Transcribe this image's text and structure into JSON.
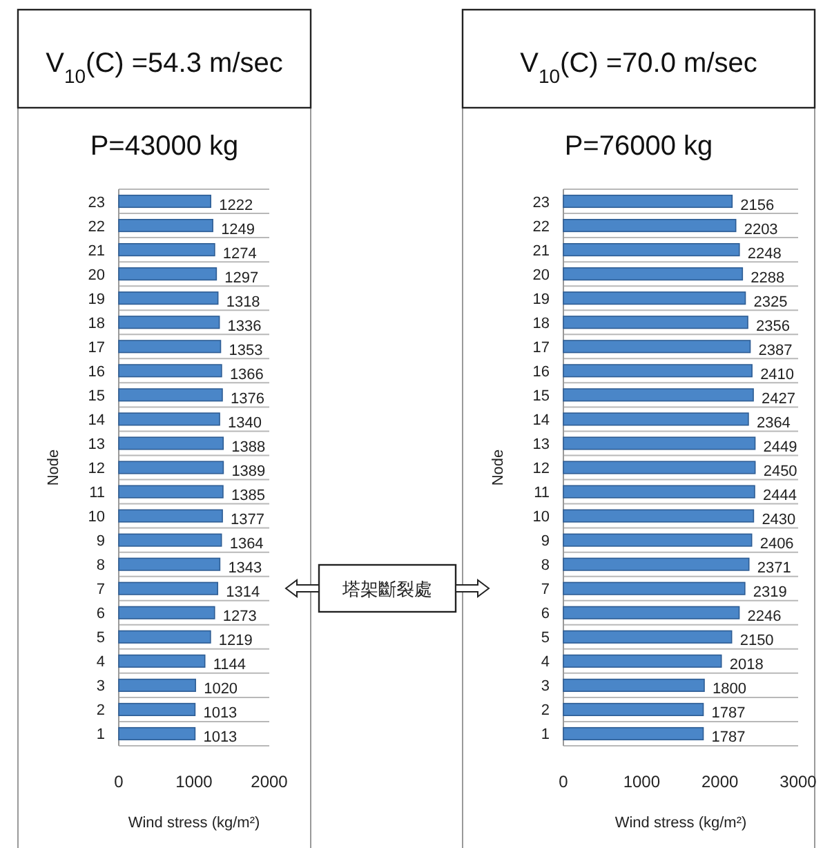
{
  "chart_data": [
    {
      "type": "bar",
      "orientation": "horizontal",
      "title": "V$_{10}$(C) =54.3 m/sec",
      "subtitle": "P=43000 kg",
      "xlabel": "Wind stress  (kg/m²)",
      "ylabel": "Node",
      "categories": [
        "23",
        "22",
        "21",
        "20",
        "19",
        "18",
        "17",
        "16",
        "15",
        "14",
        "13",
        "12",
        "11",
        "10",
        "9",
        "8",
        "7",
        "6",
        "5",
        "4",
        "3",
        "2",
        "1"
      ],
      "values": [
        1222,
        1249,
        1274,
        1297,
        1318,
        1336,
        1353,
        1366,
        1376,
        1340,
        1388,
        1389,
        1385,
        1377,
        1364,
        1343,
        1314,
        1273,
        1219,
        1144,
        1020,
        1013,
        1013
      ],
      "color": "#4a86c8",
      "xlim": [
        0,
        2000
      ],
      "xticks": [
        0,
        1000,
        2000
      ],
      "data_labels": true,
      "grid": "y",
      "annotations": [
        "塔架斷裂處"
      ]
    },
    {
      "type": "bar",
      "orientation": "horizontal",
      "title": "V$_{10}$(C) =70.0 m/sec",
      "subtitle": "P=76000 kg",
      "xlabel": "Wind stress  (kg/m²)",
      "ylabel": "Node",
      "categories": [
        "23",
        "22",
        "21",
        "20",
        "19",
        "18",
        "17",
        "16",
        "15",
        "14",
        "13",
        "12",
        "11",
        "10",
        "9",
        "8",
        "7",
        "6",
        "5",
        "4",
        "3",
        "2",
        "1"
      ],
      "values": [
        2156,
        2203,
        2248,
        2288,
        2325,
        2356,
        2387,
        2410,
        2427,
        2364,
        2449,
        2450,
        2444,
        2430,
        2406,
        2371,
        2319,
        2246,
        2150,
        2018,
        1800,
        1787,
        1787
      ],
      "color": "#4a86c8",
      "xlim": [
        0,
        3000
      ],
      "xticks": [
        0,
        1000,
        2000,
        3000
      ],
      "data_labels": true,
      "grid": "y"
    }
  ]
}
